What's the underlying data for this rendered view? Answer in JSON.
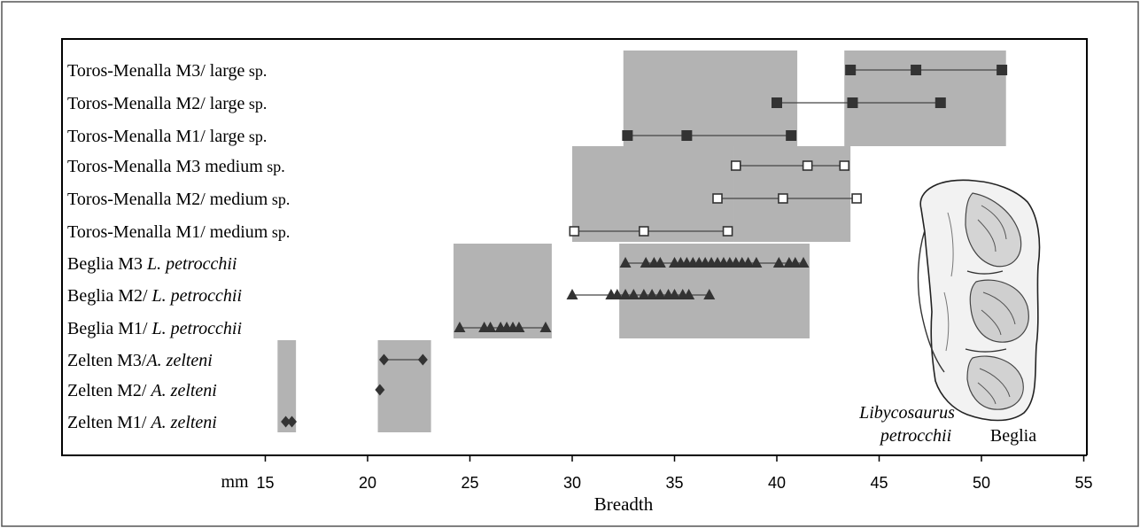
{
  "chart_data": {
    "type": "scatter",
    "title": "",
    "xlabel": "Breadth",
    "unit_label": "mm",
    "xlim": [
      15,
      55
    ],
    "xticks": [
      15,
      20,
      25,
      30,
      35,
      40,
      45,
      50,
      55
    ],
    "grid": false,
    "rows": [
      {
        "name": "Toros-Menalla M3/ large sp.",
        "label_main": "Toros-Menalla M3/ large",
        "label_small": " sp.",
        "label_italic": "",
        "marker": "square-filled",
        "values": [
          43.6,
          46.8,
          51.0
        ]
      },
      {
        "name": "Toros-Menalla M2/ large sp.",
        "label_main": "Toros-Menalla M2/ large",
        "label_small": " sp.",
        "label_italic": "",
        "marker": "square-filled",
        "values": [
          40.0,
          43.7,
          48.0
        ]
      },
      {
        "name": "Toros-Menalla M1/ large sp.",
        "label_main": "Toros-Menalla M1/ large",
        "label_small": " sp.",
        "label_italic": "",
        "marker": "square-filled",
        "values": [
          32.7,
          35.6,
          40.7
        ]
      },
      {
        "name": "Toros-Menalla M3 medium sp.",
        "label_main": "Toros-Menalla M3 medium",
        "label_small": " sp.",
        "label_italic": "",
        "marker": "square-open",
        "values": [
          38.0,
          41.5,
          43.3
        ]
      },
      {
        "name": "Toros-Menalla M2/ medium sp.",
        "label_main": "Toros-Menalla M2/ medium",
        "label_small": " sp.",
        "label_italic": "",
        "marker": "square-open",
        "values": [
          37.1,
          40.3,
          43.9
        ]
      },
      {
        "name": "Toros-Menalla M1/ medium sp.",
        "label_main": "Toros-Menalla M1/ medium",
        "label_small": " sp.",
        "label_italic": "",
        "marker": "square-open",
        "values": [
          30.1,
          33.5,
          37.6
        ]
      },
      {
        "name": "Beglia M3 L. petrocchii",
        "label_main": "Beglia M3 ",
        "label_small": "",
        "label_italic": "L. petrocchii",
        "marker": "triangle",
        "values": [
          32.6,
          33.6,
          34.0,
          34.3,
          35.0,
          35.3,
          35.6,
          35.9,
          36.2,
          36.5,
          36.8,
          37.1,
          37.4,
          37.7,
          38.0,
          38.3,
          38.6,
          39.0,
          40.1,
          40.6,
          40.9,
          41.3
        ]
      },
      {
        "name": "Beglia M2/ L. petrocchii",
        "label_main": "Beglia M2/ ",
        "label_small": "",
        "label_italic": "L. petrocchii",
        "marker": "triangle",
        "values": [
          30.0,
          31.9,
          32.2,
          32.6,
          33.0,
          33.5,
          33.9,
          34.3,
          34.7,
          35.0,
          35.4,
          35.7,
          36.7
        ]
      },
      {
        "name": "Beglia M1/ L. petrocchii",
        "label_main": "Beglia M1/ ",
        "label_small": "",
        "label_italic": "L. petrocchii",
        "marker": "triangle",
        "values": [
          24.5,
          25.7,
          26.0,
          26.5,
          26.8,
          27.1,
          27.4,
          28.7
        ]
      },
      {
        "name": "Zelten M3/A. zelteni",
        "label_main": "Zelten M3/",
        "label_small": "",
        "label_italic": "A. zelteni",
        "marker": "diamond",
        "values": [
          20.8,
          22.7
        ]
      },
      {
        "name": "Zelten M2/ A. zelteni",
        "label_main": "Zelten M2/ ",
        "label_small": "",
        "label_italic": "A. zelteni",
        "marker": "diamond",
        "values": [
          20.6
        ]
      },
      {
        "name": "Zelten M1/ A. zelteni",
        "label_main": "Zelten M1/ ",
        "label_small": "",
        "label_italic": "A. zelteni",
        "marker": "diamond",
        "values": [
          16.0,
          16.3
        ]
      }
    ],
    "range_boxes": [
      {
        "x_from": 32.5,
        "x_to": 41.0,
        "rows_from": 0,
        "rows_to": 2
      },
      {
        "x_from": 43.3,
        "x_to": 51.2,
        "rows_from": 0,
        "rows_to": 2
      },
      {
        "x_from": 30.0,
        "x_to": 37.9,
        "rows_from": 3,
        "rows_to": 5
      },
      {
        "x_from": 37.9,
        "x_to": 43.6,
        "rows_from": 3,
        "rows_to": 5
      },
      {
        "x_from": 24.2,
        "x_to": 29.0,
        "rows_from": 6,
        "rows_to": 8
      },
      {
        "x_from": 32.3,
        "x_to": 41.6,
        "rows_from": 6,
        "rows_to": 8
      },
      {
        "x_from": 15.6,
        "x_to": 16.5,
        "rows_from": 9,
        "rows_to": 11
      },
      {
        "x_from": 20.5,
        "x_to": 23.1,
        "rows_from": 9,
        "rows_to": 11
      }
    ],
    "colors": {
      "box_fill": "#b3b3b3",
      "marker": "#333333",
      "line": "#444444",
      "frame": "#000000"
    },
    "annotation": {
      "genus": "Libycosaurus",
      "species": "petrocchii",
      "locality": "Beglia"
    },
    "image": "molar-drawing"
  }
}
